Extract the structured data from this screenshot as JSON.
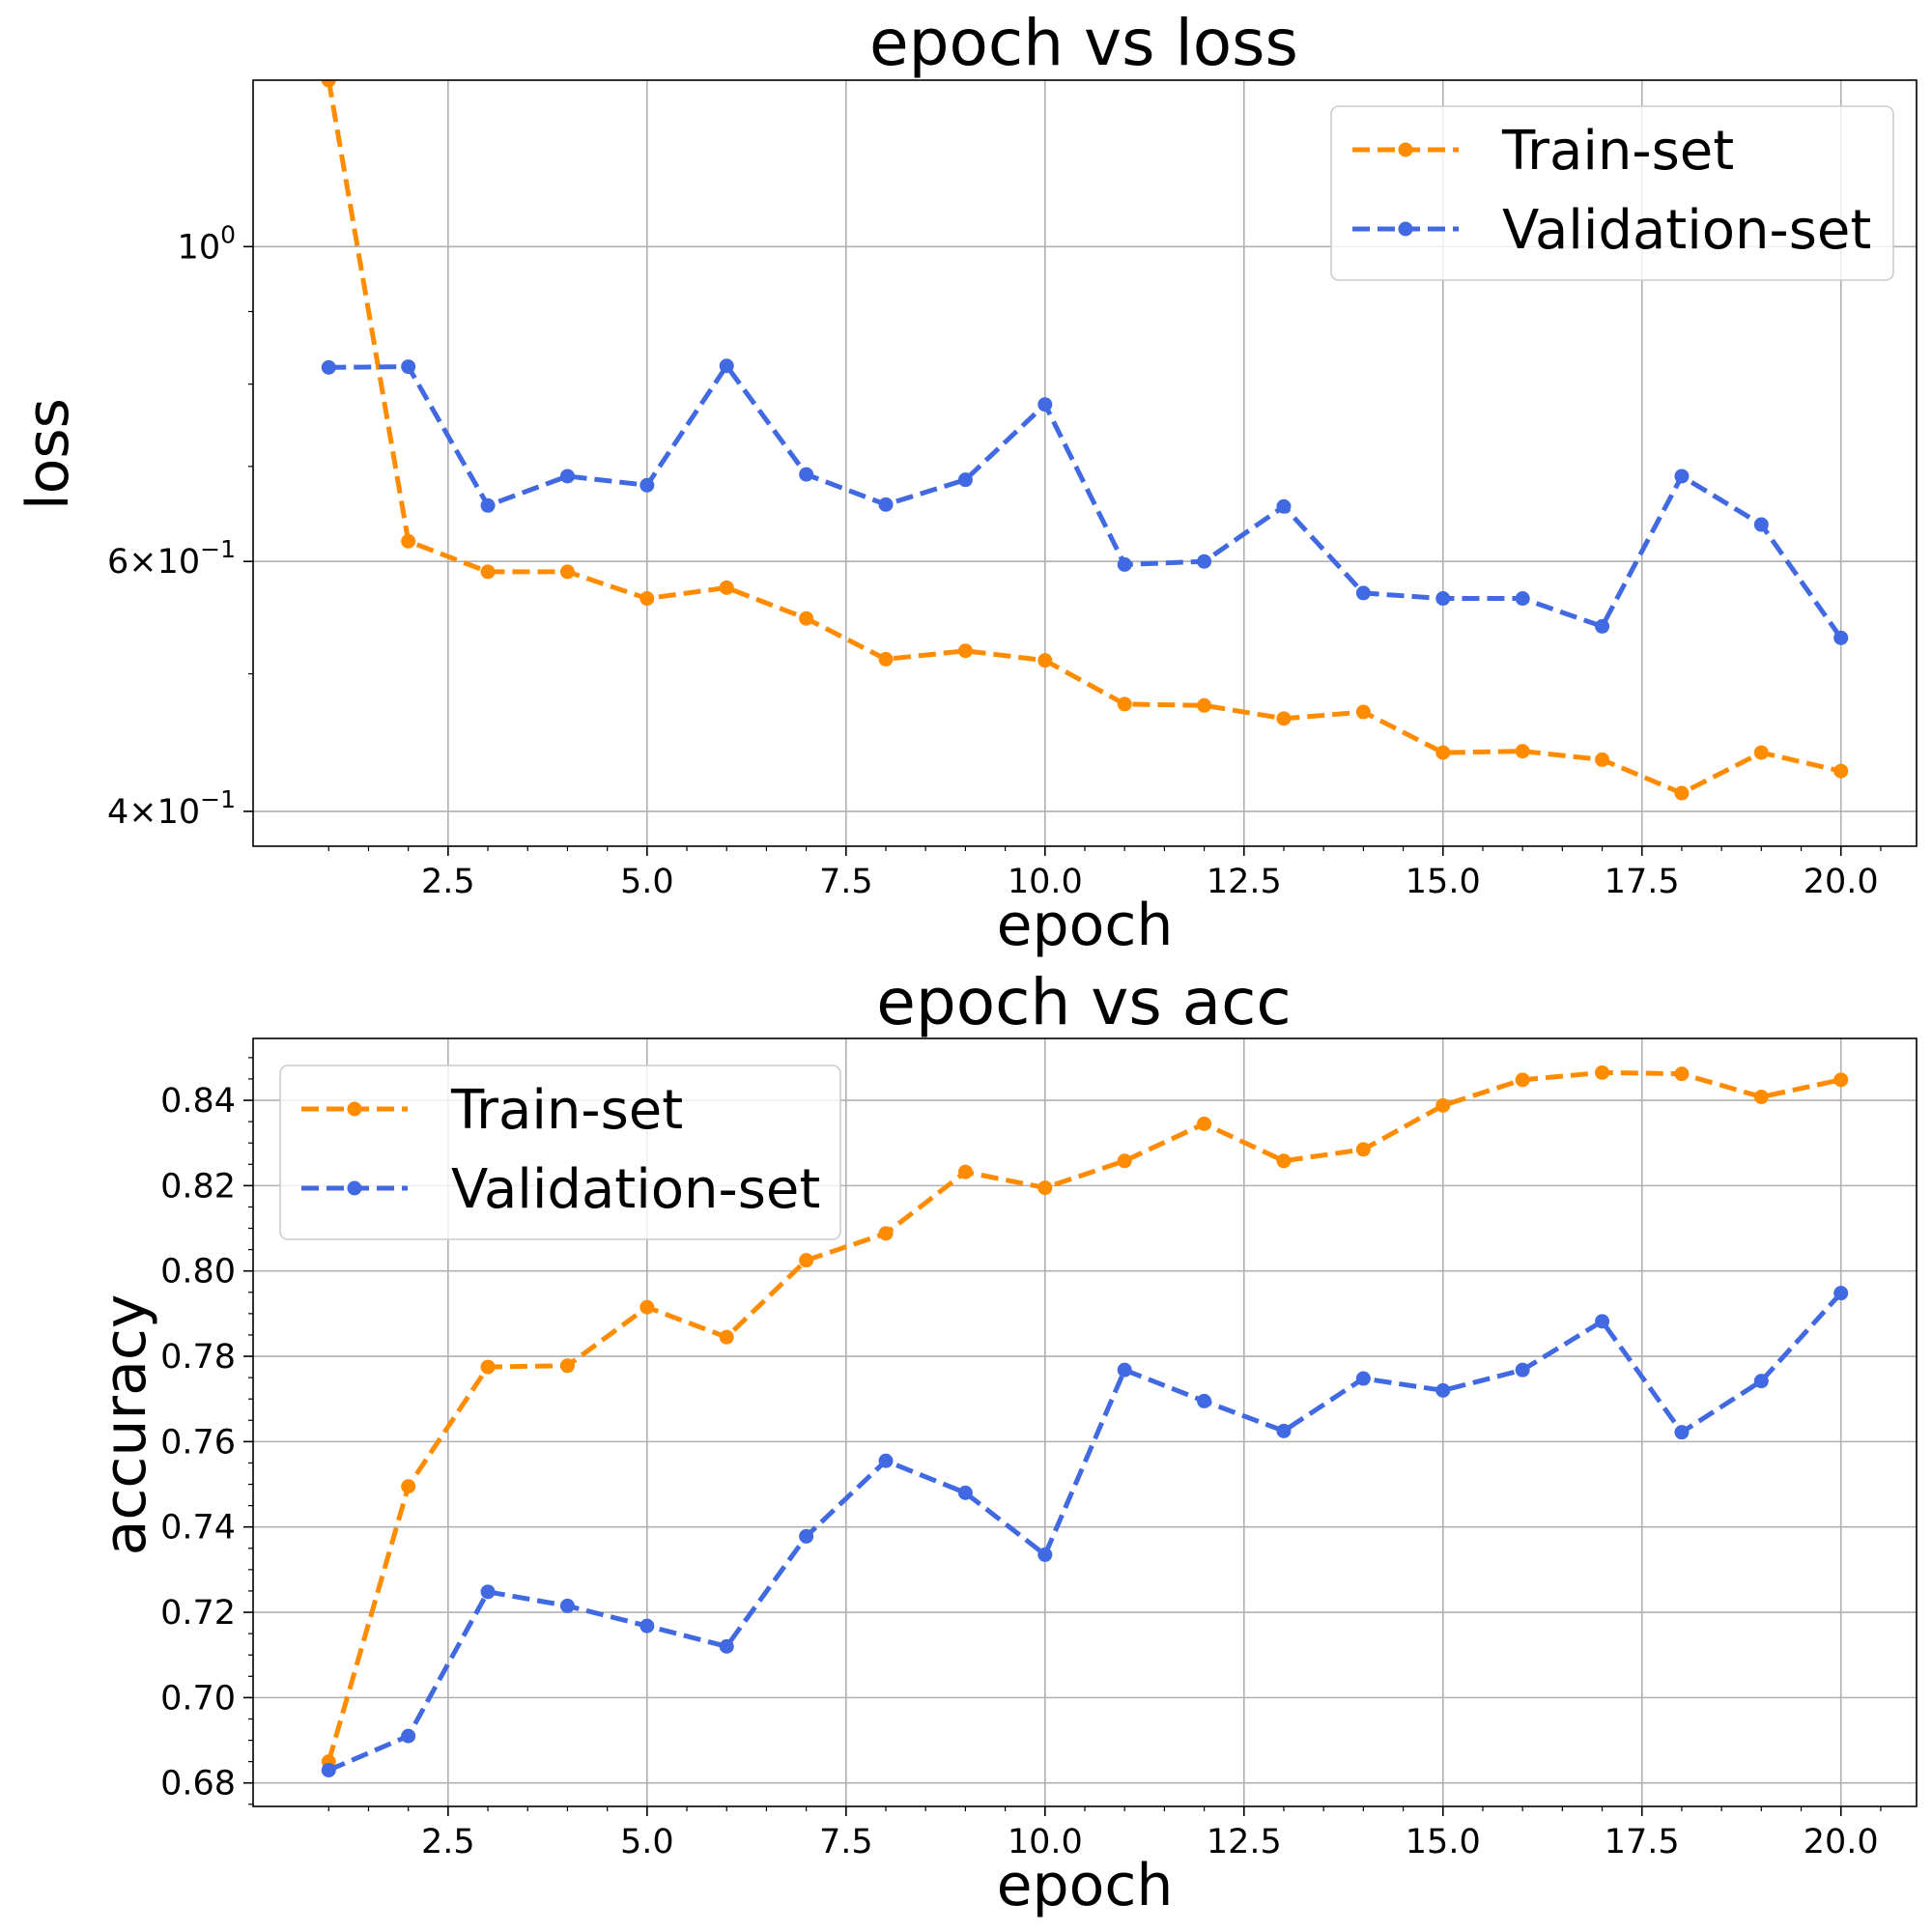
{
  "colors": {
    "train": "#ff8c00",
    "validation": "#4169e1",
    "grid": "#b0b0b0"
  },
  "chart_data": [
    {
      "type": "line",
      "title": "epoch vs loss",
      "xlabel": "epoch",
      "ylabel": "loss",
      "yscale": "log",
      "grid": true,
      "legend_position": "upper right",
      "xlim": [
        0.05,
        20.95
      ],
      "ylim": [
        0.378,
        1.31
      ],
      "xticks": [
        2.5,
        5.0,
        7.5,
        10.0,
        12.5,
        15.0,
        17.5,
        20.0
      ],
      "xtick_labels": [
        "2.5",
        "5.0",
        "7.5",
        "10.0",
        "12.5",
        "15.0",
        "17.5",
        "20.0"
      ],
      "yticks": [
        {
          "value": 1.0,
          "base": "10",
          "exp": "0"
        },
        {
          "value": 0.6,
          "mant": "6",
          "base": "10",
          "exp": "−1"
        },
        {
          "value": 0.4,
          "mant": "4",
          "base": "10",
          "exp": "−1"
        }
      ],
      "x": [
        1,
        2,
        3,
        4,
        5,
        6,
        7,
        8,
        9,
        10,
        11,
        12,
        13,
        14,
        15,
        16,
        17,
        18,
        19,
        20
      ],
      "series": [
        {
          "name": "Train-set",
          "color": "#ff8c00",
          "values": [
            1.31,
            0.62,
            0.59,
            0.59,
            0.565,
            0.575,
            0.547,
            0.512,
            0.519,
            0.511,
            0.476,
            0.475,
            0.465,
            0.47,
            0.44,
            0.441,
            0.435,
            0.412,
            0.44,
            0.427
          ]
        },
        {
          "name": "Validation-set",
          "color": "#4169e1",
          "values": [
            0.822,
            0.823,
            0.657,
            0.689,
            0.679,
            0.824,
            0.691,
            0.658,
            0.685,
            0.774,
            0.597,
            0.6,
            0.656,
            0.57,
            0.565,
            0.565,
            0.54,
            0.689,
            0.637,
            0.53
          ]
        }
      ]
    },
    {
      "type": "line",
      "title": "epoch vs acc",
      "xlabel": "epoch",
      "ylabel": "accuracy",
      "yscale": "linear",
      "grid": true,
      "legend_position": "upper left",
      "xlim": [
        0.05,
        20.95
      ],
      "ylim": [
        0.6745,
        0.8545
      ],
      "xticks": [
        2.5,
        5.0,
        7.5,
        10.0,
        12.5,
        15.0,
        17.5,
        20.0
      ],
      "xtick_labels": [
        "2.5",
        "5.0",
        "7.5",
        "10.0",
        "12.5",
        "15.0",
        "17.5",
        "20.0"
      ],
      "yticks": [
        {
          "value": 0.68,
          "label": "0.68"
        },
        {
          "value": 0.7,
          "label": "0.70"
        },
        {
          "value": 0.72,
          "label": "0.72"
        },
        {
          "value": 0.74,
          "label": "0.74"
        },
        {
          "value": 0.76,
          "label": "0.76"
        },
        {
          "value": 0.78,
          "label": "0.78"
        },
        {
          "value": 0.8,
          "label": "0.80"
        },
        {
          "value": 0.82,
          "label": "0.82"
        },
        {
          "value": 0.84,
          "label": "0.84"
        }
      ],
      "x": [
        1,
        2,
        3,
        4,
        5,
        6,
        7,
        8,
        9,
        10,
        11,
        12,
        13,
        14,
        15,
        16,
        17,
        18,
        19,
        20
      ],
      "series": [
        {
          "name": "Train-set",
          "color": "#ff8c00",
          "values": [
            0.685,
            0.7495,
            0.7775,
            0.7778,
            0.7915,
            0.7845,
            0.8025,
            0.8088,
            0.8232,
            0.8195,
            0.8258,
            0.8345,
            0.8258,
            0.8285,
            0.8388,
            0.8448,
            0.8465,
            0.8462,
            0.8408,
            0.8448
          ]
        },
        {
          "name": "Validation-set",
          "color": "#4169e1",
          "values": [
            0.683,
            0.691,
            0.7248,
            0.7215,
            0.7168,
            0.712,
            0.7378,
            0.7555,
            0.748,
            0.7335,
            0.7768,
            0.7695,
            0.7625,
            0.7748,
            0.772,
            0.7768,
            0.7882,
            0.7622,
            0.7742,
            0.7948
          ]
        }
      ]
    }
  ]
}
